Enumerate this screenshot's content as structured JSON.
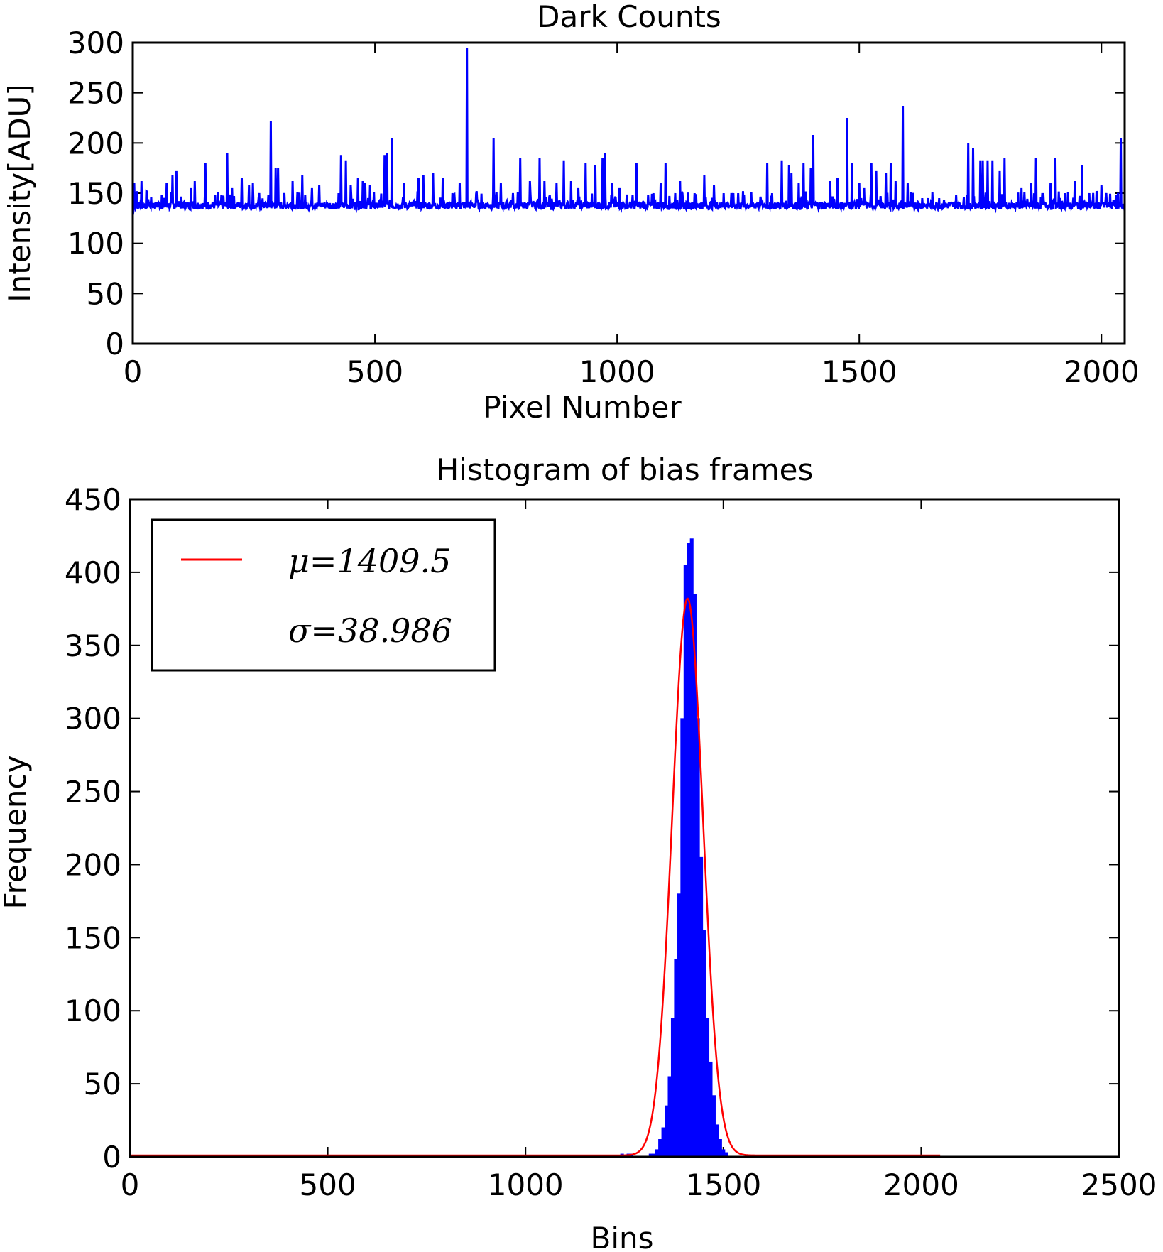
{
  "chart_data": [
    {
      "type": "line",
      "title": "Dark Counts",
      "xlabel": "Pixel Number",
      "ylabel": "Intensity[ADU]",
      "xlim": [
        0,
        2048
      ],
      "ylim": [
        0,
        300
      ],
      "xticks": [
        "0",
        "500",
        "1000",
        "1500",
        "2000"
      ],
      "yticks": [
        "0",
        "50",
        "100",
        "150",
        "200",
        "250",
        "300"
      ],
      "grid": false,
      "series": [
        {
          "color": "#0000ff",
          "baseline": 138,
          "spikes": [
            [
              3,
              160
            ],
            [
              8,
              152
            ],
            [
              18,
              162
            ],
            [
              28,
              152
            ],
            [
              60,
              148
            ],
            [
              70,
              160
            ],
            [
              82,
              168
            ],
            [
              90,
              172
            ],
            [
              120,
              155
            ],
            [
              128,
              162
            ],
            [
              150,
              180
            ],
            [
              170,
              148
            ],
            [
              195,
              190
            ],
            [
              205,
              155
            ],
            [
              225,
              165
            ],
            [
              240,
              158
            ],
            [
              248,
              160
            ],
            [
              285,
              222
            ],
            [
              295,
              175
            ],
            [
              300,
              175
            ],
            [
              330,
              162
            ],
            [
              350,
              168
            ],
            [
              370,
              155
            ],
            [
              385,
              158
            ],
            [
              430,
              188
            ],
            [
              440,
              182
            ],
            [
              450,
              158
            ],
            [
              465,
              165
            ],
            [
              475,
              162
            ],
            [
              480,
              160
            ],
            [
              490,
              158
            ],
            [
              520,
              188
            ],
            [
              525,
              190
            ],
            [
              535,
              205
            ],
            [
              560,
              160
            ],
            [
              590,
              165
            ],
            [
              600,
              168
            ],
            [
              620,
              170
            ],
            [
              640,
              165
            ],
            [
              660,
              150
            ],
            [
              675,
              160
            ],
            [
              690,
              295
            ],
            [
              710,
              152
            ],
            [
              745,
              205
            ],
            [
              760,
              160
            ],
            [
              785,
              150
            ],
            [
              800,
              185
            ],
            [
              820,
              162
            ],
            [
              840,
              185
            ],
            [
              850,
              162
            ],
            [
              875,
              160
            ],
            [
              890,
              182
            ],
            [
              905,
              162
            ],
            [
              920,
              155
            ],
            [
              935,
              180
            ],
            [
              955,
              178
            ],
            [
              970,
              185
            ],
            [
              975,
              190
            ],
            [
              990,
              160
            ],
            [
              1005,
              155
            ],
            [
              1040,
              180
            ],
            [
              1075,
              150
            ],
            [
              1090,
              160
            ],
            [
              1100,
              180
            ],
            [
              1120,
              150
            ],
            [
              1130,
              162
            ],
            [
              1160,
              150
            ],
            [
              1180,
              168
            ],
            [
              1200,
              158
            ],
            [
              1220,
              150
            ],
            [
              1240,
              150
            ],
            [
              1250,
              150
            ],
            [
              1260,
              152
            ],
            [
              1310,
              180
            ],
            [
              1320,
              150
            ],
            [
              1340,
              182
            ],
            [
              1355,
              178
            ],
            [
              1360,
              170
            ],
            [
              1375,
              160
            ],
            [
              1385,
              180
            ],
            [
              1400,
              175
            ],
            [
              1405,
              208
            ],
            [
              1440,
              162
            ],
            [
              1455,
              165
            ],
            [
              1475,
              225
            ],
            [
              1485,
              180
            ],
            [
              1500,
              160
            ],
            [
              1510,
              155
            ],
            [
              1525,
              180
            ],
            [
              1535,
              172
            ],
            [
              1555,
              170
            ],
            [
              1565,
              180
            ],
            [
              1575,
              162
            ],
            [
              1590,
              237
            ],
            [
              1600,
              160
            ],
            [
              1610,
              150
            ],
            [
              1630,
              145
            ],
            [
              1665,
              145
            ],
            [
              1700,
              148
            ],
            [
              1725,
              200
            ],
            [
              1735,
              195
            ],
            [
              1750,
              182
            ],
            [
              1755,
              182
            ],
            [
              1765,
              182
            ],
            [
              1775,
              182
            ],
            [
              1790,
              172
            ],
            [
              1800,
              185
            ],
            [
              1835,
              155
            ],
            [
              1855,
              160
            ],
            [
              1865,
              185
            ],
            [
              1880,
              150
            ],
            [
              1895,
              160
            ],
            [
              1905,
              185
            ],
            [
              1925,
              150
            ],
            [
              1945,
              162
            ],
            [
              1960,
              178
            ],
            [
              1975,
              150
            ],
            [
              1990,
              152
            ],
            [
              2000,
              158
            ],
            [
              2010,
              150
            ],
            [
              2030,
              148
            ],
            [
              2040,
              205
            ]
          ]
        }
      ]
    },
    {
      "type": "bar",
      "title": "Histogram of bias frames",
      "xlabel": "Bins",
      "ylabel": "Frequency",
      "xlim": [
        0,
        2500
      ],
      "ylim": [
        0,
        450
      ],
      "xticks": [
        "0",
        "500",
        "1000",
        "1500",
        "2000",
        "2500"
      ],
      "yticks": [
        "0",
        "50",
        "100",
        "150",
        "200",
        "250",
        "300",
        "350",
        "400",
        "450"
      ],
      "grid": false,
      "legend": {
        "position": "upper-left",
        "entries": [
          "μ=1409.5",
          "σ=38.986"
        ]
      },
      "series": [
        {
          "kind": "histogram",
          "color": "#0000ff",
          "bin_width": 8,
          "bins": [
            [
              1240,
              2
            ],
            [
              1256,
              2
            ],
            [
              1264,
              2
            ],
            [
              1312,
              2
            ],
            [
              1320,
              2
            ],
            [
              1328,
              5
            ],
            [
              1336,
              12
            ],
            [
              1344,
              20
            ],
            [
              1352,
              35
            ],
            [
              1360,
              55
            ],
            [
              1368,
              95
            ],
            [
              1376,
              135
            ],
            [
              1384,
              180
            ],
            [
              1392,
              300
            ],
            [
              1400,
              405
            ],
            [
              1408,
              420
            ],
            [
              1416,
              423
            ],
            [
              1424,
              385
            ],
            [
              1432,
              300
            ],
            [
              1440,
              205
            ],
            [
              1448,
              155
            ],
            [
              1456,
              95
            ],
            [
              1464,
              65
            ],
            [
              1472,
              42
            ],
            [
              1480,
              22
            ],
            [
              1488,
              12
            ],
            [
              1496,
              5
            ],
            [
              1504,
              3
            ]
          ]
        },
        {
          "kind": "gaussian",
          "name": "μ=1409.5",
          "color": "#ff0000",
          "mu": 1409.5,
          "sigma": 38.986,
          "peak": 381,
          "range": [
            0,
            2048
          ]
        }
      ]
    }
  ]
}
